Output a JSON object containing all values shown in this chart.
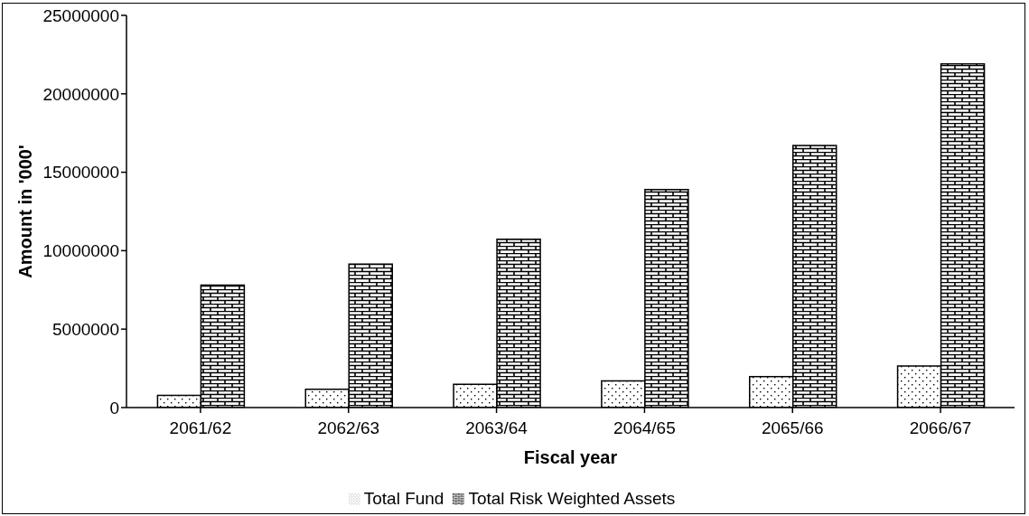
{
  "chart_data": {
    "type": "bar",
    "xlabel": "Fiscal year",
    "ylabel": "Amount in '000'",
    "categories": [
      "2061/62",
      "2062/63",
      "2063/64",
      "2064/65",
      "2065/66",
      "2066/67"
    ],
    "series": [
      {
        "name": "Total Fund",
        "color": "#000000",
        "values": [
          780000,
          1170000,
          1480000,
          1700000,
          1970000,
          2650000
        ]
      },
      {
        "name": "Total Risk Weighted Assets",
        "color": "#000000",
        "values": [
          7800000,
          9150000,
          10730000,
          13900000,
          16700000,
          21900000
        ]
      }
    ],
    "ylim": [
      0,
      25000000
    ],
    "yticks": [
      0,
      5000000,
      10000000,
      15000000,
      20000000,
      25000000
    ],
    "grid": false,
    "legend": "bottom"
  }
}
